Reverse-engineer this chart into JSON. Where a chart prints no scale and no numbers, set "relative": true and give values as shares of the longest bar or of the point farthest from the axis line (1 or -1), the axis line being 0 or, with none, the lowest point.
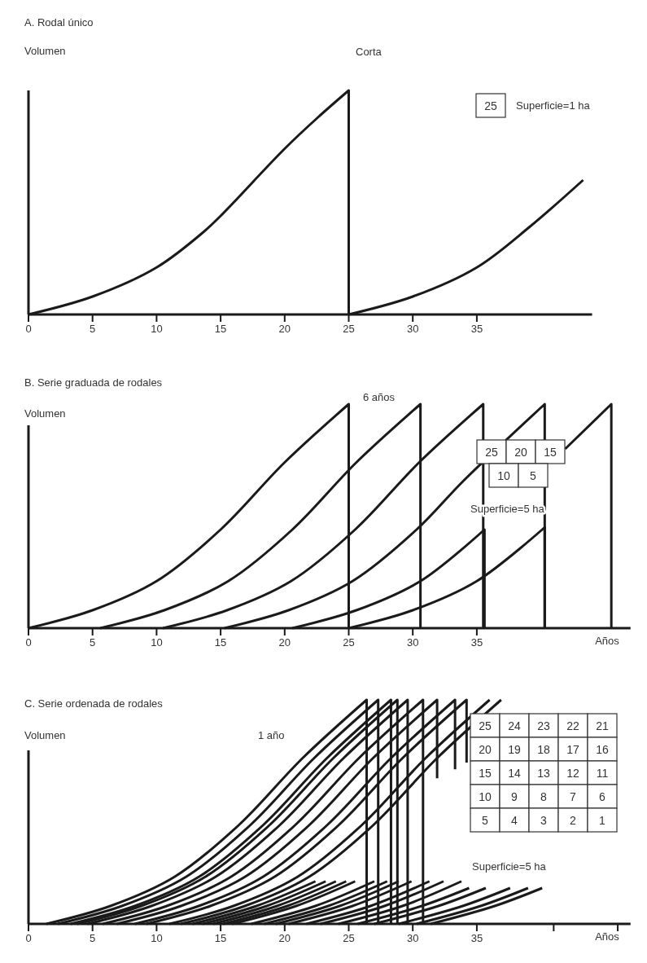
{
  "chart_data": [
    {
      "type": "line",
      "title": "A. Rodal único",
      "ylabel": "Volumen",
      "relative": true,
      "xlim": [
        0,
        44
      ],
      "xticks": [
        0,
        5,
        10,
        15,
        20,
        25,
        30,
        35
      ],
      "annotations": [
        "Corta",
        "25",
        "Superficie=1 ha"
      ],
      "series": [
        {
          "color": "#1a1a1a",
          "x": [
            0,
            5,
            10,
            13.7,
            15,
            20,
            22.6,
            25,
            25
          ],
          "values": [
            0,
            0.08,
            0.21,
            0.37,
            0.44,
            0.74,
            0.88,
            1,
            0
          ]
        },
        {
          "color": "#1a1a1a",
          "x": [
            25,
            30,
            35,
            39.1,
            43.3
          ],
          "values": [
            0,
            0.08,
            0.21,
            0.39,
            0.6
          ]
        }
      ]
    },
    {
      "type": "line",
      "title": "B. Serie graduada de rodales",
      "ylabel": "Volumen",
      "xlabel": "Años",
      "relative": true,
      "xlim": [
        0,
        47
      ],
      "xticks": [
        0,
        5,
        10,
        15,
        20,
        25,
        30,
        35
      ],
      "annotations": [
        "6 años",
        "25",
        "20",
        "15",
        "10",
        "5",
        "Superficie=5 ha"
      ],
      "series": [
        {
          "color": "#1a1a1a",
          "x": [
            0,
            5,
            10,
            15,
            20,
            25,
            25
          ],
          "values": [
            0,
            0.08,
            0.21,
            0.44,
            0.74,
            1,
            0
          ]
        },
        {
          "color": "#1a1a1a",
          "x": [
            5.6,
            10.6,
            15.6,
            20.6,
            25.6,
            30.6,
            30.6
          ],
          "values": [
            0,
            0.08,
            0.21,
            0.44,
            0.74,
            1,
            0
          ]
        },
        {
          "color": "#1a1a1a",
          "x": [
            10.5,
            15.5,
            20.5,
            25.5,
            30.5,
            35.5,
            35.5
          ],
          "values": [
            0,
            0.08,
            0.21,
            0.44,
            0.74,
            1,
            0
          ]
        },
        {
          "color": "#1a1a1a",
          "x": [
            15.3,
            20.3,
            25.3,
            30.3,
            34,
            40.3,
            40.3
          ],
          "values": [
            0,
            0.08,
            0.21,
            0.44,
            0.66,
            1,
            0
          ]
        },
        {
          "color": "#1a1a1a",
          "x": [
            20.6,
            25.6,
            30.6,
            35.6,
            35.6
          ],
          "values": [
            0,
            0.08,
            0.21,
            0.44,
            0
          ]
        },
        {
          "color": "#1a1a1a",
          "x": [
            25,
            30,
            35,
            40.3,
            40.3
          ],
          "values": [
            0,
            0.08,
            0.21,
            0.45,
            0
          ]
        },
        {
          "color": "#1a1a1a",
          "x": [
            41.9,
            45.5,
            45.5
          ],
          "values": [
            0.8,
            1,
            0
          ]
        }
      ]
    },
    {
      "type": "line",
      "title": "C. Serie ordenada de rodales",
      "ylabel": "Volumen",
      "xlabel": "Años",
      "relative": true,
      "xlim": [
        0,
        47
      ],
      "xticks": [
        0,
        5,
        10,
        15,
        20,
        25,
        30,
        35,
        {
          "value": 41,
          "label": null
        },
        {
          "value": 46,
          "label": null
        }
      ],
      "annotations": [
        "1 año",
        "25",
        "24",
        "23",
        "22",
        "21",
        "20",
        "19",
        "18",
        "17",
        "16",
        "15",
        "14",
        "13",
        "12",
        "11",
        "10",
        "9",
        "8",
        "7",
        "6",
        "5",
        "4",
        "3",
        "2",
        "1",
        "Superficie=5 ha"
      ],
      "series": [
        {
          "color": "#1a1a1a",
          "x": [
            1.4,
            6.4,
            11.4,
            16.4,
            21.4,
            26.4,
            26.4
          ],
          "values": [
            0,
            0.08,
            0.21,
            0.44,
            0.74,
            1,
            0
          ]
        },
        {
          "color": "#1a1a1a",
          "x": [
            2.3,
            7.3,
            12.3,
            17.3,
            22.3,
            27.3,
            27.3
          ],
          "values": [
            0,
            0.08,
            0.21,
            0.44,
            0.74,
            1,
            0
          ]
        },
        {
          "color": "#1a1a1a",
          "x": [
            3.3,
            8.3,
            13.3,
            18.3,
            23.3,
            28.3,
            28.3
          ],
          "values": [
            0,
            0.08,
            0.21,
            0.44,
            0.74,
            1,
            0
          ]
        },
        {
          "color": "#1a1a1a",
          "x": [
            3.8,
            8.8,
            13.8,
            18.8,
            23.8,
            28.8,
            28.8
          ],
          "values": [
            0,
            0.08,
            0.21,
            0.44,
            0.74,
            1,
            0
          ]
        },
        {
          "color": "#1a1a1a",
          "x": [
            4.6,
            9.6,
            14.6,
            19.6,
            24.6,
            29.6,
            29.6
          ],
          "values": [
            0,
            0.08,
            0.21,
            0.44,
            0.74,
            1,
            0
          ]
        },
        {
          "color": "#1a1a1a",
          "x": [
            5.8,
            10.8,
            15.8,
            20.8,
            25.8,
            30.8,
            30.8
          ],
          "values": [
            0,
            0.08,
            0.21,
            0.44,
            0.74,
            1,
            0
          ]
        },
        {
          "color": "#1a1a1a",
          "x": [
            6.9,
            11.9,
            16.9,
            21.9,
            26.9,
            31.9,
            31.9
          ],
          "values": [
            0,
            0.08,
            0.21,
            0.44,
            0.74,
            1,
            0.65
          ]
        },
        {
          "color": "#1a1a1a",
          "x": [
            8.3,
            13.3,
            18.3,
            23.3,
            28.3,
            33.3,
            33.3
          ],
          "values": [
            0,
            0.08,
            0.21,
            0.44,
            0.74,
            1,
            0.69
          ]
        },
        {
          "color": "#1a1a1a",
          "x": [
            9.2,
            14.2,
            19.2,
            24.2,
            29.2,
            34.2,
            34.2
          ],
          "values": [
            0,
            0.08,
            0.21,
            0.44,
            0.74,
            1,
            0.72
          ]
        },
        {
          "color": "#1a1a1a",
          "x": [
            11,
            16,
            21,
            26,
            31,
            36
          ],
          "values": [
            0,
            0.08,
            0.21,
            0.44,
            0.74,
            1
          ]
        },
        {
          "color": "#1a1a1a",
          "x": [
            11.9,
            16.9,
            21.9,
            26.9,
            31.9,
            36.9
          ],
          "values": [
            0,
            0.08,
            0.21,
            0.44,
            0.74,
            1
          ]
        },
        {
          "color": "#1a1a1a",
          "x": [
            12.8,
            17.8,
            22.4
          ],
          "values": [
            0,
            0.08,
            0.19
          ]
        },
        {
          "color": "#1a1a1a",
          "x": [
            13.6,
            18.6,
            23.2
          ],
          "values": [
            0,
            0.08,
            0.19
          ]
        },
        {
          "color": "#1a1a1a",
          "x": [
            14.4,
            19.4,
            24
          ],
          "values": [
            0,
            0.08,
            0.19
          ]
        },
        {
          "color": "#1a1a1a",
          "x": [
            15.2,
            20.2,
            24.8
          ],
          "values": [
            0,
            0.08,
            0.19
          ]
        },
        {
          "color": "#1a1a1a",
          "x": [
            15.9,
            20.9,
            25.5
          ],
          "values": [
            0,
            0.08,
            0.19
          ]
        },
        {
          "color": "#1a1a1a",
          "x": [
            17.4,
            22.4,
            27
          ],
          "values": [
            0,
            0.08,
            0.19
          ]
        },
        {
          "color": "#1a1a1a",
          "x": [
            18.4,
            23.4,
            28
          ],
          "values": [
            0,
            0.08,
            0.19
          ]
        },
        {
          "color": "#1a1a1a",
          "x": [
            19.3,
            24.3,
            28.9
          ],
          "values": [
            0,
            0.08,
            0.19
          ]
        },
        {
          "color": "#1a1a1a",
          "x": [
            20.3,
            25.3,
            29.9
          ],
          "values": [
            0,
            0.08,
            0.19
          ]
        },
        {
          "color": "#1a1a1a",
          "x": [
            21.7,
            26.7,
            31.3
          ],
          "values": [
            0,
            0.08,
            0.19
          ]
        },
        {
          "color": "#1a1a1a",
          "x": [
            22.8,
            27.8,
            32.4
          ],
          "values": [
            0,
            0.08,
            0.19
          ]
        },
        {
          "color": "#1a1a1a",
          "x": [
            24.2,
            29.2,
            33.8
          ],
          "values": [
            0,
            0.08,
            0.19
          ]
        },
        {
          "color": "#1a1a1a",
          "x": [
            25.7,
            30.7,
            34.4
          ],
          "values": [
            0,
            0.08,
            0.16
          ]
        },
        {
          "color": "#1a1a1a",
          "x": [
            27,
            32,
            35.7
          ],
          "values": [
            0,
            0.08,
            0.16
          ]
        },
        {
          "color": "#1a1a1a",
          "x": [
            28.9,
            33.9,
            37.6
          ],
          "values": [
            0,
            0.08,
            0.16
          ]
        },
        {
          "color": "#1a1a1a",
          "x": [
            30.3,
            35.3,
            39
          ],
          "values": [
            0,
            0.08,
            0.16
          ]
        },
        {
          "color": "#1a1a1a",
          "x": [
            31.4,
            36.4,
            40.1
          ],
          "values": [
            0,
            0.08,
            0.16
          ]
        }
      ]
    }
  ]
}
